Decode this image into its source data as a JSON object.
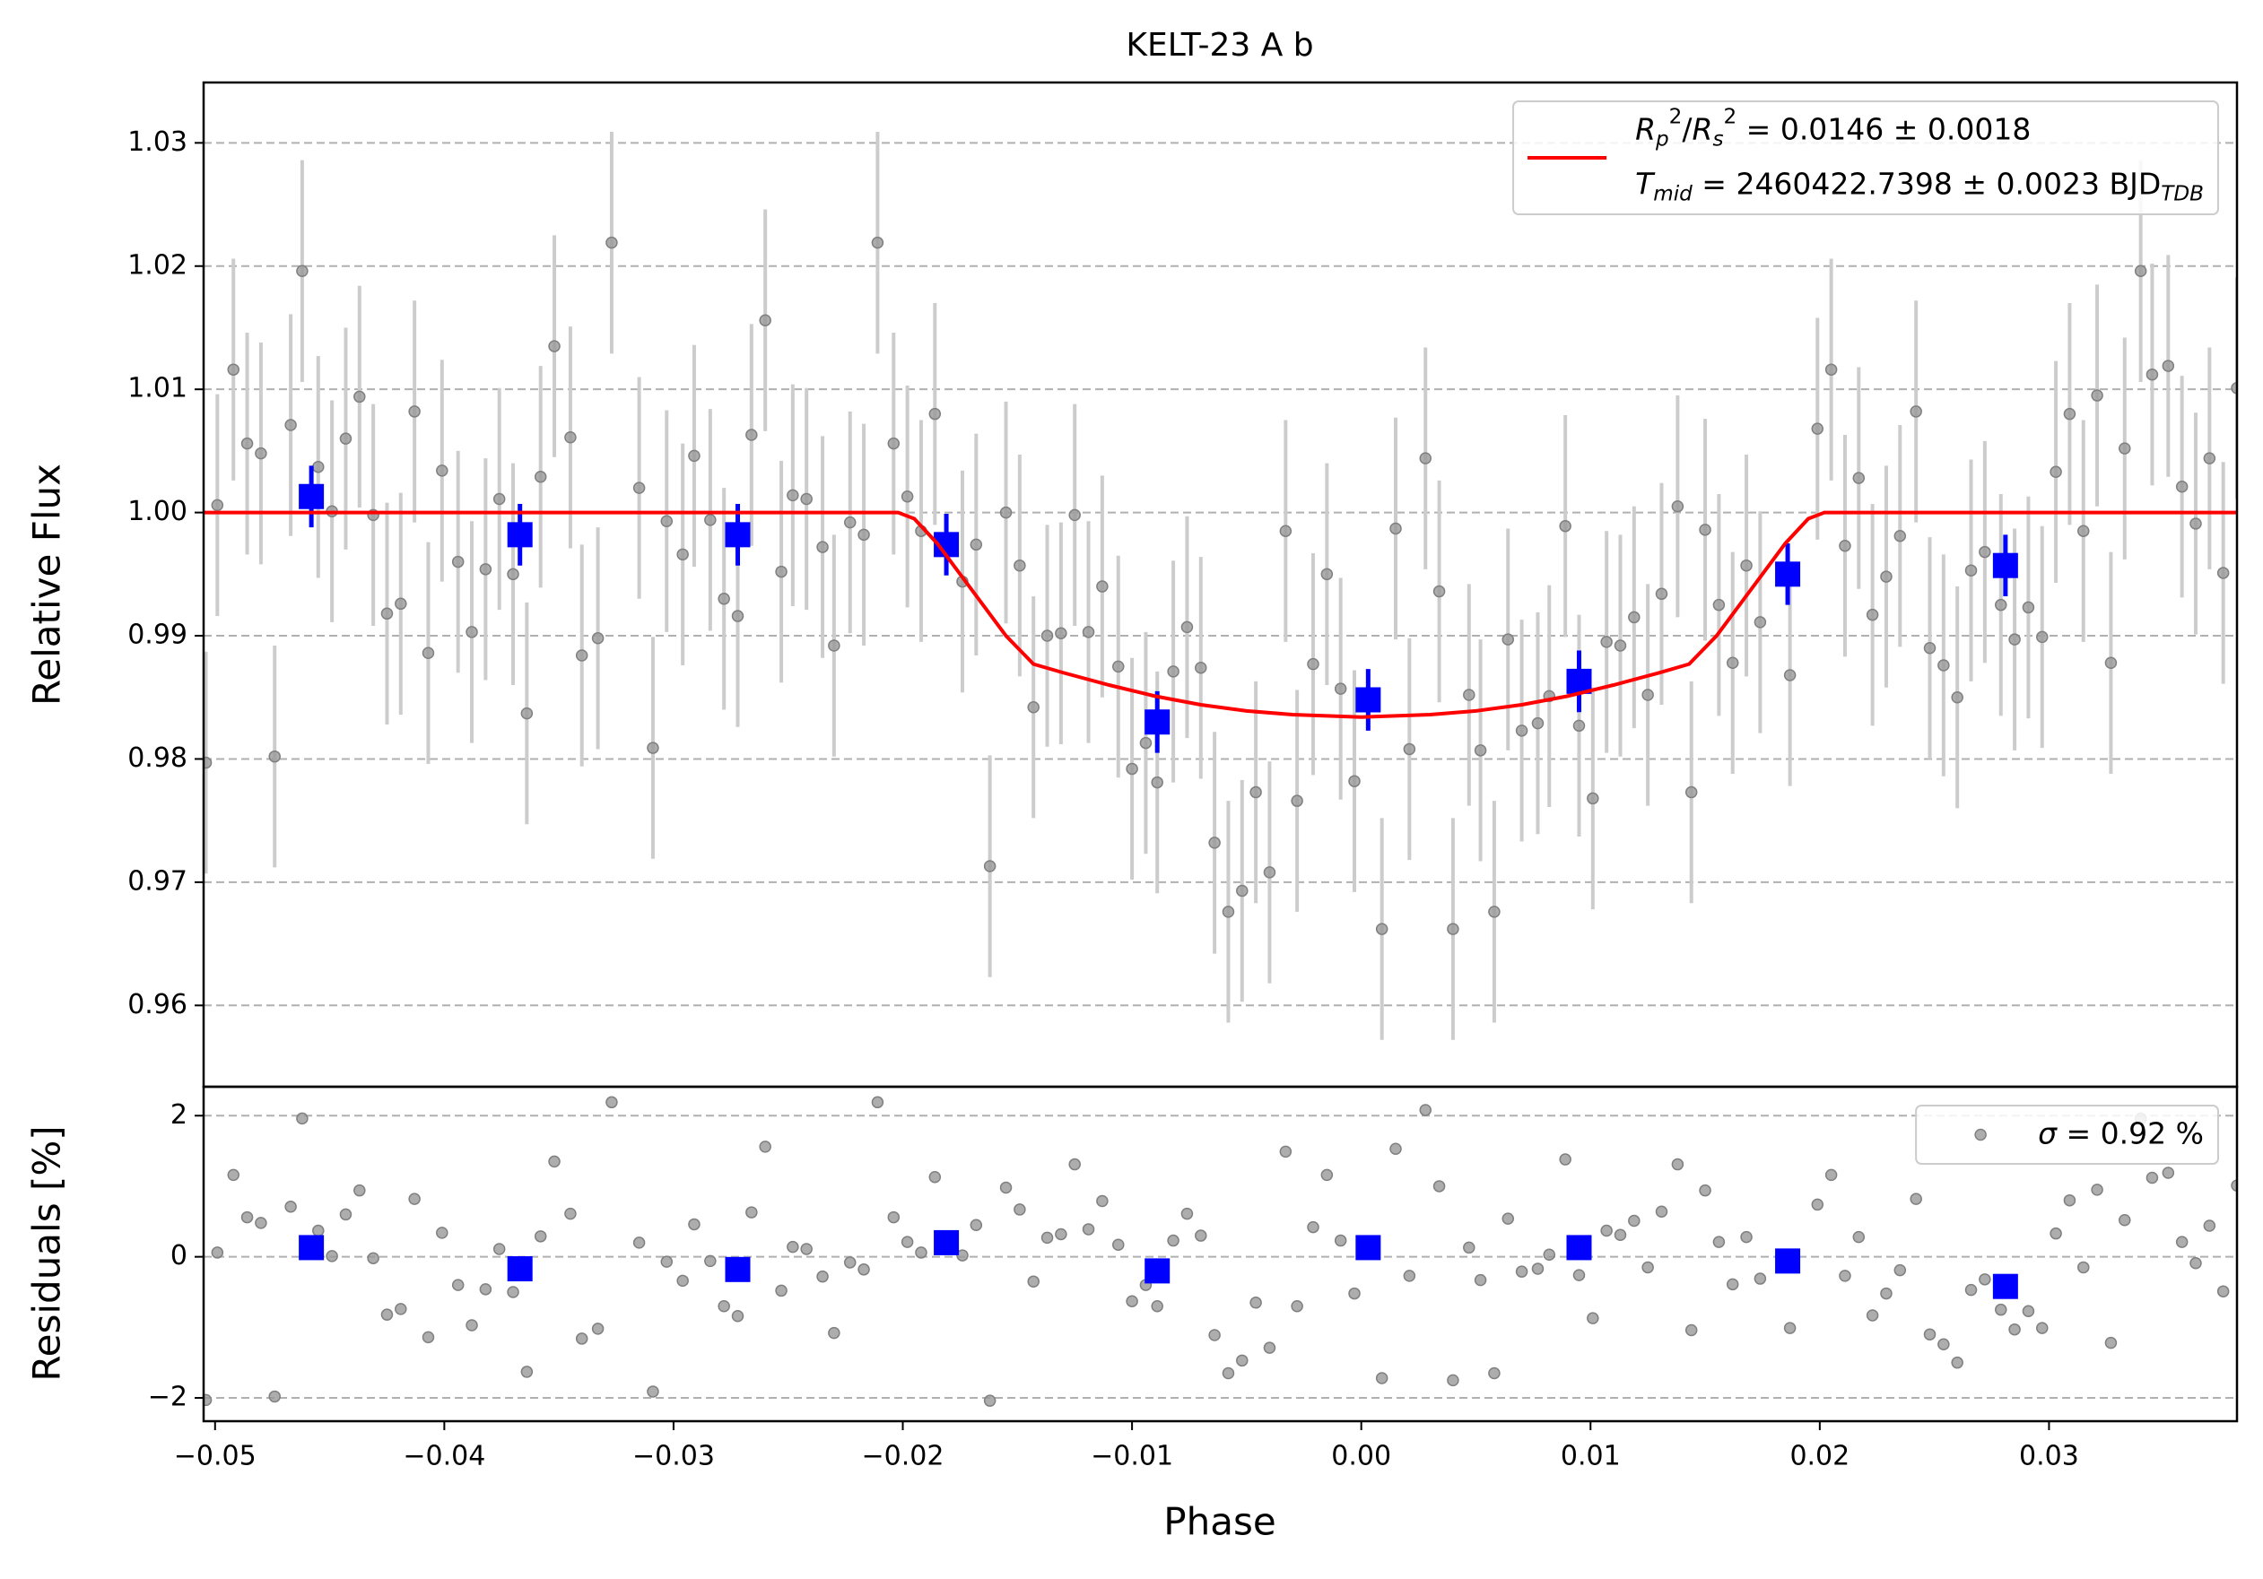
{
  "chart_data": [
    {
      "type": "scatter",
      "title": "KELT-23 A b",
      "ylabel": "Relative Flux",
      "xlim": [
        -0.0505,
        0.0382
      ],
      "ylim": [
        0.9534,
        1.0349
      ],
      "yticks": [
        0.96,
        0.97,
        0.98,
        0.99,
        {
          "value": 1,
          "label": "1.00"
        },
        1.01,
        1.02,
        1.03
      ],
      "grid": true,
      "legend": "upper right",
      "series": [
        {
          "style": "points",
          "color": "#999999",
          "error_color": "#cccccc",
          "error": 0.009,
          "x": [
            -0.0504,
            -0.0499,
            -0.0492,
            -0.0486,
            -0.048,
            -0.0474,
            -0.0467,
            -0.0462,
            -0.0455,
            -0.0449,
            -0.0443,
            -0.0437,
            -0.0431,
            -0.0425,
            -0.0419,
            -0.0413,
            -0.0407,
            -0.0401,
            -0.0394,
            -0.0388,
            -0.0382,
            -0.0376,
            -0.037,
            -0.0364,
            -0.0358,
            -0.0352,
            -0.0345,
            -0.034,
            -0.0333,
            -0.0327,
            -0.0315,
            -0.0309,
            -0.0303,
            -0.0296,
            -0.0291,
            -0.0284,
            -0.0278,
            -0.0272,
            -0.0266,
            -0.026,
            -0.0253,
            -0.0248,
            -0.0242,
            -0.0235,
            -0.023,
            -0.0223,
            -0.0217,
            -0.0211,
            -0.0204,
            -0.0198,
            -0.0192,
            -0.0186,
            -0.0174,
            -0.0168,
            -0.0162,
            -0.0155,
            -0.0149,
            -0.0143,
            -0.0137,
            -0.0131,
            -0.0125,
            -0.0119,
            -0.0113,
            -0.0106,
            -0.01,
            -0.0094,
            -0.0089,
            -0.0082,
            -0.0076,
            -0.007,
            -0.0064,
            -0.0058,
            -0.0052,
            -0.0046,
            -0.004,
            -0.0033,
            -0.0028,
            -0.0021,
            -0.0015,
            -0.0009,
            -0.0003,
            0.0009,
            0.0015,
            0.0021,
            0.0028,
            0.0034,
            0.004,
            0.0047,
            0.0052,
            0.0058,
            0.0064,
            0.007,
            0.0077,
            0.0082,
            0.0089,
            0.0095,
            0.0101,
            0.0107,
            0.0113,
            0.0119,
            0.0125,
            0.0131,
            0.0138,
            0.0144,
            0.015,
            0.0156,
            0.0162,
            0.0168,
            0.0174,
            0.0187,
            0.0199,
            0.0205,
            0.0211,
            0.0217,
            0.0223,
            0.0229,
            0.0235,
            0.0242,
            0.0248,
            0.0254,
            0.026,
            0.0266,
            0.0272,
            0.0279,
            0.0285,
            0.0291,
            0.0297,
            0.0303,
            0.0309,
            0.0315,
            0.0321,
            0.0327,
            0.0333,
            0.034,
            0.0345,
            0.0352,
            0.0358,
            0.0364,
            0.037,
            0.0376,
            0.0382
          ],
          "values": [
            0.9797,
            1.0006,
            1.0116,
            1.0056,
            1.0048,
            0.9802,
            1.0071,
            1.0196,
            1.0037,
            1.0001,
            1.006,
            1.0094,
            0.9998,
            0.9918,
            0.9926,
            1.0082,
            0.9886,
            1.0034,
            0.996,
            0.9903,
            0.9954,
            1.0011,
            0.995,
            0.9837,
            1.0029,
            1.0135,
            1.0061,
            0.9884,
            0.9898,
            1.0219,
            1.002,
            0.9809,
            0.9993,
            0.9966,
            1.0046,
            0.9994,
            0.993,
            0.9916,
            1.0063,
            1.0156,
            0.9952,
            1.0014,
            1.0011,
            0.9972,
            0.9892,
            0.9992,
            0.9982,
            1.0219,
            1.0056,
            1.0013,
            0.9985,
            1.008,
            0.9944,
            0.9974,
            0.9713,
            1.0,
            0.9957,
            0.9842,
            0.99,
            0.9902,
            0.9998,
            0.9903,
            0.994,
            0.9875,
            0.9792,
            0.9813,
            0.9781,
            0.9871,
            0.9907,
            0.9874,
            0.9732,
            0.9676,
            0.9693,
            0.9773,
            0.9708,
            0.9985,
            0.9766,
            0.9877,
            0.995,
            0.9857,
            0.9782,
            0.9662,
            0.9987,
            0.9808,
            1.0044,
            0.9936,
            0.9662,
            0.9852,
            0.9807,
            0.9676,
            0.9897,
            0.9823,
            0.9829,
            0.9851,
            0.9989,
            0.9827,
            0.9768,
            0.9895,
            0.9892,
            0.9915,
            0.9852,
            0.9934,
            1.0005,
            0.9773,
            0.9986,
            0.9925,
            0.9878,
            0.9957,
            0.9911,
            0.9868,
            1.0068,
            1.0116,
            0.9973,
            1.0028,
            0.9917,
            0.9948,
            0.9981,
            1.0082,
            0.989,
            0.9876,
            0.985,
            0.9953,
            0.9968,
            0.9925,
            0.9897,
            0.9923,
            0.9899,
            1.0033,
            1.008,
            0.9985,
            1.0095,
            0.9878,
            1.0052,
            1.0196,
            1.0112,
            1.0119,
            1.0021,
            0.9991,
            1.0044,
            0.9951,
            1.0101
          ]
        },
        {
          "style": "squares",
          "color": "#0000ff",
          "error": 0.0025,
          "x": [
            -0.0458,
            -0.0367,
            -0.0272,
            -0.0181,
            -0.0089,
            0.0003,
            0.0095,
            0.0186,
            0.0281
          ],
          "values": [
            1.0013,
            0.9982,
            0.9982,
            0.9974,
            0.983,
            0.9848,
            0.9863,
            0.995,
            0.9957
          ]
        },
        {
          "style": "line",
          "color": "#ff0000",
          "name_lines": [
            [
              {
                "text": "R",
                "italic": true
              },
              {
                "text": "p",
                "pos": "sub",
                "italic": true
              },
              {
                "text": "2",
                "pos": "sup"
              },
              {
                "text": "/"
              },
              {
                "text": "R",
                "italic": true
              },
              {
                "text": "s",
                "pos": "sub",
                "italic": true
              },
              {
                "text": "2",
                "pos": "sup"
              },
              {
                "text": " = 0.0146 ± 0.0018"
              }
            ],
            [
              {
                "text": "T",
                "italic": true
              },
              {
                "text": "mid",
                "pos": "sub",
                "italic": true
              },
              {
                "text": " = 2460422.7398 ± 0.0023 BJD"
              },
              {
                "text": "TDB",
                "pos": "sub",
                "italic": true
              }
            ]
          ],
          "x": [
            -0.0505,
            -0.0202,
            -0.0195,
            -0.0185,
            -0.0175,
            -0.0165,
            -0.0155,
            -0.0143,
            -0.013,
            -0.011,
            -0.009,
            -0.007,
            -0.005,
            -0.003,
            0,
            0.003,
            0.005,
            0.007,
            0.009,
            0.011,
            0.013,
            0.0143,
            0.0155,
            0.0165,
            0.0175,
            0.0185,
            0.0195,
            0.0202,
            0.0382
          ],
          "values": [
            1,
            1,
            0.9995,
            0.9975,
            0.995,
            0.9925,
            0.99,
            0.9877,
            0.987,
            0.986,
            0.9851,
            0.9844,
            0.9839,
            0.9836,
            0.9834,
            0.9836,
            0.9839,
            0.9844,
            0.9851,
            0.986,
            0.987,
            0.9877,
            0.99,
            0.9925,
            0.995,
            0.9975,
            0.9995,
            1,
            1
          ]
        }
      ]
    },
    {
      "type": "scatter",
      "xlabel": "Phase",
      "ylabel": "Residuals [%]",
      "xlim": [
        -0.0505,
        0.0382
      ],
      "ylim": [
        -2.33,
        2.41
      ],
      "xticks": [
        {
          "value": -0.05,
          "label": "−0.05"
        },
        {
          "value": -0.04,
          "label": "−0.04"
        },
        {
          "value": -0.03,
          "label": "−0.03"
        },
        {
          "value": -0.02,
          "label": "−0.02"
        },
        {
          "value": -0.01,
          "label": "−0.01"
        },
        {
          "value": 0,
          "label": "0.00"
        },
        0.01,
        0.02,
        0.03
      ],
      "yticks": [
        {
          "value": -2,
          "label": "−2"
        },
        0,
        2
      ],
      "grid": true,
      "legend": "upper right",
      "series": [
        {
          "style": "points",
          "color": "#999999",
          "name_lines": [
            [
              {
                "text": "σ",
                "italic": true
              },
              {
                "text": " = 0.92 %"
              }
            ]
          ],
          "x": [
            -0.0504,
            -0.0499,
            -0.0492,
            -0.0486,
            -0.048,
            -0.0474,
            -0.0467,
            -0.0462,
            -0.0455,
            -0.0449,
            -0.0443,
            -0.0437,
            -0.0431,
            -0.0425,
            -0.0419,
            -0.0413,
            -0.0407,
            -0.0401,
            -0.0394,
            -0.0388,
            -0.0382,
            -0.0376,
            -0.037,
            -0.0364,
            -0.0358,
            -0.0352,
            -0.0345,
            -0.034,
            -0.0333,
            -0.0327,
            -0.0315,
            -0.0309,
            -0.0303,
            -0.0296,
            -0.0291,
            -0.0284,
            -0.0278,
            -0.0272,
            -0.0266,
            -0.026,
            -0.0253,
            -0.0248,
            -0.0242,
            -0.0235,
            -0.023,
            -0.0223,
            -0.0217,
            -0.0211,
            -0.0204,
            -0.0198,
            -0.0192,
            -0.0186,
            -0.0174,
            -0.0168,
            -0.0162,
            -0.0155,
            -0.0149,
            -0.0143,
            -0.0137,
            -0.0131,
            -0.0125,
            -0.0119,
            -0.0113,
            -0.0106,
            -0.01,
            -0.0094,
            -0.0089,
            -0.0082,
            -0.0076,
            -0.007,
            -0.0064,
            -0.0058,
            -0.0052,
            -0.0046,
            -0.004,
            -0.0033,
            -0.0028,
            -0.0021,
            -0.0015,
            -0.0009,
            -0.0003,
            0.0009,
            0.0015,
            0.0021,
            0.0028,
            0.0034,
            0.004,
            0.0047,
            0.0052,
            0.0058,
            0.0064,
            0.007,
            0.0077,
            0.0082,
            0.0089,
            0.0095,
            0.0101,
            0.0107,
            0.0113,
            0.0119,
            0.0125,
            0.0131,
            0.0138,
            0.0144,
            0.015,
            0.0156,
            0.0162,
            0.0168,
            0.0174,
            0.0187,
            0.0199,
            0.0205,
            0.0211,
            0.0217,
            0.0223,
            0.0229,
            0.0235,
            0.0242,
            0.0248,
            0.0254,
            0.026,
            0.0266,
            0.0272,
            0.0279,
            0.0285,
            0.0291,
            0.0297,
            0.0303,
            0.0309,
            0.0315,
            0.0321,
            0.0327,
            0.0333,
            0.034,
            0.0345,
            0.0352,
            0.0358,
            0.0364,
            0.037,
            0.0376,
            0.0382
          ],
          "values": [
            -2.03,
            0.06,
            1.16,
            0.56,
            0.48,
            -1.98,
            0.71,
            1.96,
            0.37,
            0.01,
            0.6,
            0.94,
            -0.02,
            -0.82,
            -0.74,
            0.82,
            -1.14,
            0.34,
            -0.4,
            -0.97,
            -0.46,
            0.11,
            -0.5,
            -1.63,
            0.29,
            1.35,
            0.61,
            -1.16,
            -1.02,
            2.19,
            0.2,
            -1.91,
            -0.07,
            -0.34,
            0.46,
            -0.06,
            -0.7,
            -0.84,
            0.63,
            1.56,
            -0.48,
            0.14,
            0.11,
            -0.28,
            -1.08,
            -0.08,
            -0.18,
            2.19,
            0.56,
            0.21,
            0.06,
            1.13,
            0.02,
            0.45,
            -2.04,
            0.98,
            0.67,
            -0.35,
            0.27,
            0.32,
            1.31,
            0.39,
            0.79,
            0.17,
            -0.63,
            -0.4,
            -0.7,
            0.23,
            0.61,
            0.3,
            -1.11,
            -1.65,
            -1.47,
            -0.65,
            -1.29,
            1.49,
            -0.7,
            0.42,
            1.16,
            0.23,
            -0.52,
            -1.72,
            1.53,
            -0.27,
            2.08,
            1.0,
            -1.75,
            0.13,
            -0.33,
            -1.65,
            0.54,
            -0.21,
            -0.17,
            0.03,
            1.38,
            -0.26,
            -0.87,
            0.37,
            0.31,
            0.51,
            -0.15,
            0.64,
            1.31,
            -1.04,
            0.94,
            0.21,
            -0.39,
            0.28,
            -0.31,
            -1.01,
            0.74,
            1.16,
            -0.27,
            0.28,
            -0.83,
            -0.52,
            -0.19,
            0.82,
            -1.1,
            -1.24,
            -1.5,
            -0.47,
            -0.32,
            -0.75,
            -1.03,
            -0.77,
            -1.01,
            0.33,
            0.8,
            -0.15,
            0.95,
            -1.22,
            0.52,
            1.96,
            1.12,
            1.19,
            0.21,
            -0.09,
            0.44,
            -0.49,
            1.01
          ]
        },
        {
          "style": "squares",
          "color": "#0000ff",
          "x": [
            -0.0458,
            -0.0367,
            -0.0272,
            -0.0181,
            -0.0089,
            0.0003,
            0.0095,
            0.0186,
            0.0281
          ],
          "values": [
            0.13,
            -0.17,
            -0.18,
            0.2,
            -0.2,
            0.13,
            0.13,
            -0.06,
            -0.42
          ]
        }
      ]
    }
  ]
}
